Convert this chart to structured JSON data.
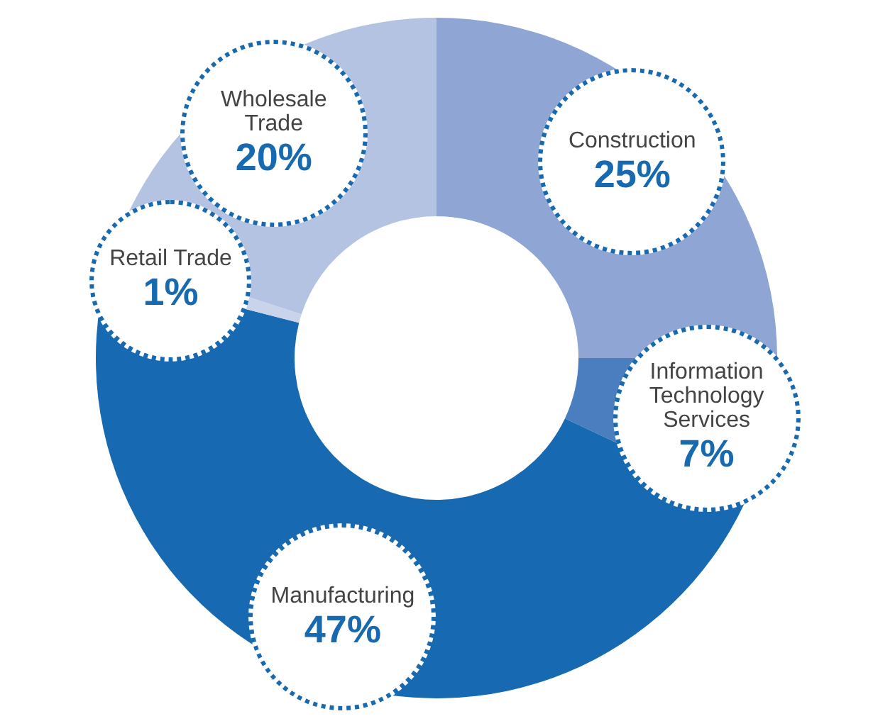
{
  "chart_data": {
    "type": "donut",
    "categories": [
      "Construction",
      "Information Technology Services",
      "Manufacturing",
      "Retail Trade",
      "Wholesale Trade"
    ],
    "values": [
      25,
      7,
      47,
      1,
      20
    ],
    "value_labels": [
      "25%",
      "7%",
      "47%",
      "1%",
      "20%"
    ],
    "colors": [
      "#8fa6d4",
      "#4a7ebe",
      "#176ab1",
      "#c9d3ea",
      "#b4c3e2"
    ]
  }
}
